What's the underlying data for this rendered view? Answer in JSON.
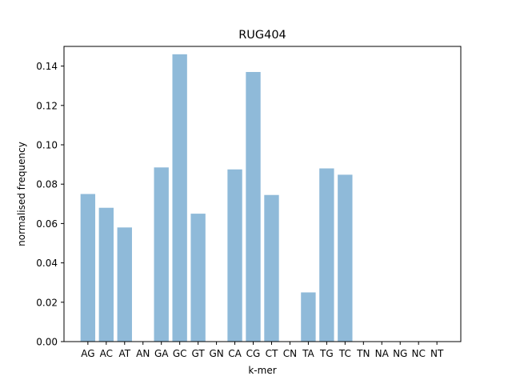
{
  "chart_data": {
    "type": "bar",
    "title": "RUG404",
    "xlabel": "k-mer",
    "ylabel": "normalised frequency",
    "categories": [
      "AG",
      "AC",
      "AT",
      "AN",
      "GA",
      "GC",
      "GT",
      "GN",
      "CA",
      "CG",
      "CT",
      "CN",
      "TA",
      "TG",
      "TC",
      "TN",
      "NA",
      "NG",
      "NC",
      "NT"
    ],
    "values": [
      0.075,
      0.068,
      0.058,
      0.0,
      0.0885,
      0.146,
      0.065,
      0.0,
      0.0875,
      0.137,
      0.0745,
      0.0,
      0.025,
      0.088,
      0.0848,
      0.0,
      0.0,
      0.0,
      0.0,
      0.0
    ],
    "ylim": [
      0,
      0.15
    ],
    "yticks": [
      "0.00",
      "0.02",
      "0.04",
      "0.06",
      "0.08",
      "0.10",
      "0.12",
      "0.14"
    ],
    "bar_color": "#8fbad9",
    "grid": false
  }
}
